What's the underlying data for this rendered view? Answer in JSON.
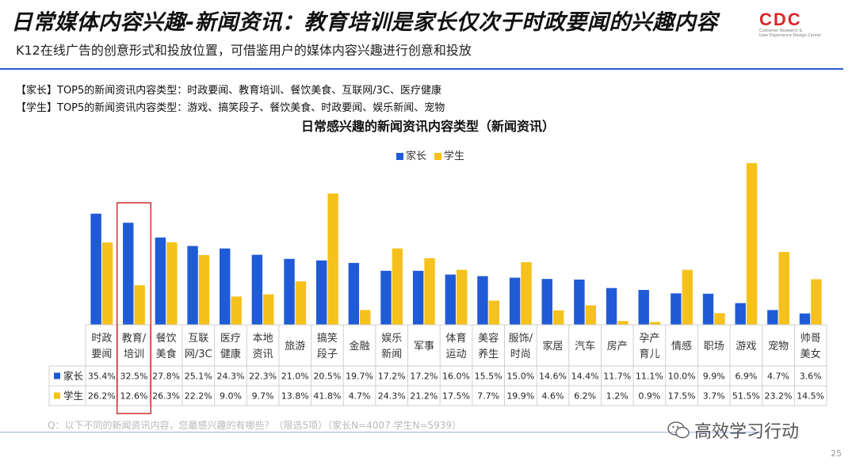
{
  "header": {
    "title": "日常媒体内容兴趣-新闻资讯：教育培训是家长仅次于时政要闻的兴趣内容",
    "subtitle": "K12在线广告的创意形式和投放位置，可借鉴用户的媒体内容兴趣进行创意和投放"
  },
  "logo": {
    "mark": "CDC",
    "line1": "Customer Research &",
    "line2": "User Experience Design Center"
  },
  "notes": {
    "parents": "【家长】TOP5的新闻资讯内容类型：时政要闻、教育培训、餐饮美食、互联网/3C、医疗健康",
    "students": "【学生】TOP5的新闻资讯内容类型：游戏、搞笑段子、餐饮美食、时政要闻、娱乐新闻、宠物"
  },
  "footer": {
    "source": "Q：以下不同的新闻资讯内容，您最感兴趣的有哪些？（限选5项）（家长N=4007   学生N=5939）",
    "watermark": "高效学习行动",
    "page_number": "25"
  },
  "colors": {
    "parents": "#1f5bd6",
    "students": "#f5c11a",
    "highlight": "#d22d2d",
    "rule": "#2a5bd7"
  },
  "chart_data": {
    "type": "bar",
    "title": "日常感兴趣的新闻资讯内容类型（新闻资讯）",
    "legend_position": "top-center",
    "highlighted_category_index": 1,
    "categories": [
      [
        "时政",
        "要闻"
      ],
      [
        "教育/",
        "培训"
      ],
      [
        "餐饮",
        "美食"
      ],
      [
        "互联",
        "网/3C"
      ],
      [
        "医疗",
        "健康"
      ],
      [
        "本地",
        "资讯"
      ],
      [
        "旅游"
      ],
      [
        "搞笑",
        "段子"
      ],
      [
        "金融"
      ],
      [
        "娱乐",
        "新闻"
      ],
      [
        "军事"
      ],
      [
        "体育",
        "运动"
      ],
      [
        "美容",
        "养生"
      ],
      [
        "服饰/",
        "时尚"
      ],
      [
        "家居"
      ],
      [
        "汽车"
      ],
      [
        "房产"
      ],
      [
        "孕产",
        "育儿"
      ],
      [
        "情感"
      ],
      [
        "职场"
      ],
      [
        "游戏"
      ],
      [
        "宠物"
      ],
      [
        "帅哥",
        "美女"
      ]
    ],
    "series": [
      {
        "name": "家长",
        "values": [
          35.4,
          32.5,
          27.8,
          25.1,
          24.3,
          22.3,
          21.0,
          20.5,
          19.7,
          17.2,
          17.2,
          16.0,
          15.5,
          15.0,
          14.6,
          14.4,
          11.7,
          11.1,
          10.0,
          9.9,
          6.9,
          4.7,
          3.6
        ],
        "labels": [
          "35.4%",
          "32.5%",
          "27.8%",
          "25.1%",
          "24.3%",
          "22.3%",
          "21.0%",
          "20.5%",
          "19.7%",
          "17.2%",
          "17.2%",
          "16.0%",
          "15.5%",
          "15.0%",
          "14.6%",
          "14.4%",
          "11.7%",
          "11.1%",
          "10.0%",
          "9.9%",
          "6.9%",
          "4.7%",
          "3.6%"
        ]
      },
      {
        "name": "学生",
        "values": [
          26.2,
          12.6,
          26.3,
          22.2,
          9.0,
          9.7,
          13.8,
          41.8,
          4.7,
          24.3,
          21.2,
          17.5,
          7.7,
          19.9,
          4.6,
          6.2,
          1.2,
          0.9,
          17.5,
          3.7,
          51.5,
          23.2,
          14.5
        ],
        "labels": [
          "26.2%",
          "12.6%",
          "26.3%",
          "22.2%",
          "9.0%",
          "9.7%",
          "13.8%",
          "41.8%",
          "4.7%",
          "24.3%",
          "21.2%",
          "17.5%",
          "7.7%",
          "19.9%",
          "4.6%",
          "6.2%",
          "1.2%",
          "0.9%",
          "17.5%",
          "3.7%",
          "51.5%",
          "23.2%",
          "14.5%"
        ]
      }
    ],
    "ylim": [
      0,
      55
    ],
    "grid": false
  }
}
